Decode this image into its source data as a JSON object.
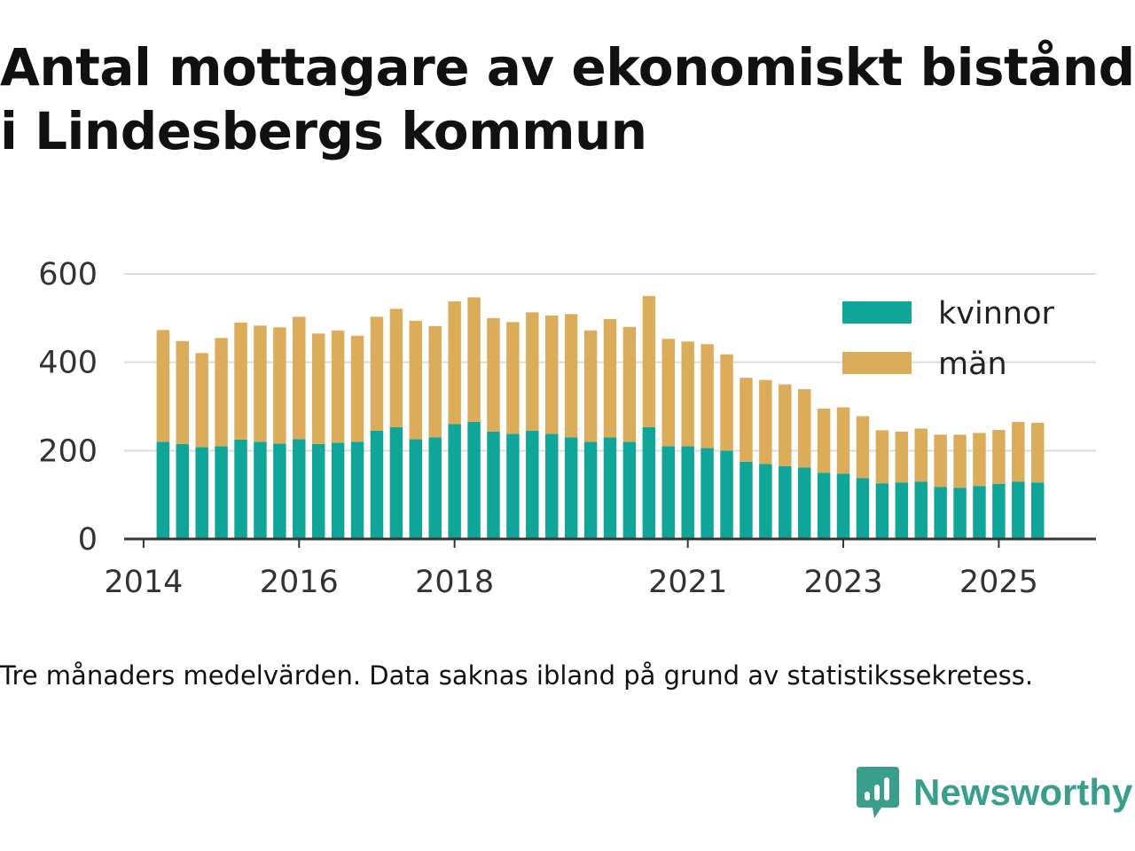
{
  "title": "Antal mottagare av ekonomiskt bistånd i Lindesbergs kommun",
  "note": "Tre månaders medelvärden. Data saknas ibland på grund av statistikssekretess.",
  "brand": {
    "name": "Newsworthy",
    "icon": "newsworthy-logo-icon",
    "color": "#3a9e8d"
  },
  "chart_data": {
    "type": "bar",
    "stacked": true,
    "x_start": "2014-04",
    "x_step_months": 3,
    "xlim": [
      "2013-10",
      "2026-04"
    ],
    "ylim": [
      0,
      600
    ],
    "y_ticks": [
      0,
      200,
      400,
      600
    ],
    "x_ticks": [
      {
        "label": "2014",
        "date": "2014-01"
      },
      {
        "label": "2016",
        "date": "2016-01"
      },
      {
        "label": "2018",
        "date": "2018-01"
      },
      {
        "label": "2021",
        "date": "2021-01"
      },
      {
        "label": "2023",
        "date": "2023-01"
      },
      {
        "label": "2025",
        "date": "2025-01"
      }
    ],
    "grid": true,
    "legend_position": "top-right",
    "series": [
      {
        "name": "kvinnor",
        "color": "#0fa699",
        "values": [
          220,
          215,
          208,
          210,
          225,
          220,
          216,
          226,
          215,
          218,
          220,
          245,
          253,
          226,
          230,
          260,
          265,
          243,
          238,
          245,
          238,
          230,
          220,
          230,
          220,
          253,
          210,
          210,
          206,
          200,
          175,
          170,
          165,
          162,
          150,
          148,
          138,
          126,
          128,
          130,
          118,
          116,
          120,
          125,
          130,
          128
        ]
      },
      {
        "name": "män",
        "color": "#dbad5a",
        "values": [
          253,
          233,
          213,
          245,
          265,
          263,
          263,
          277,
          250,
          254,
          240,
          258,
          268,
          268,
          252,
          278,
          282,
          257,
          253,
          268,
          268,
          279,
          252,
          268,
          260,
          297,
          243,
          237,
          235,
          218,
          190,
          190,
          185,
          177,
          145,
          150,
          140,
          120,
          115,
          120,
          118,
          120,
          120,
          122,
          135,
          135
        ]
      }
    ]
  }
}
